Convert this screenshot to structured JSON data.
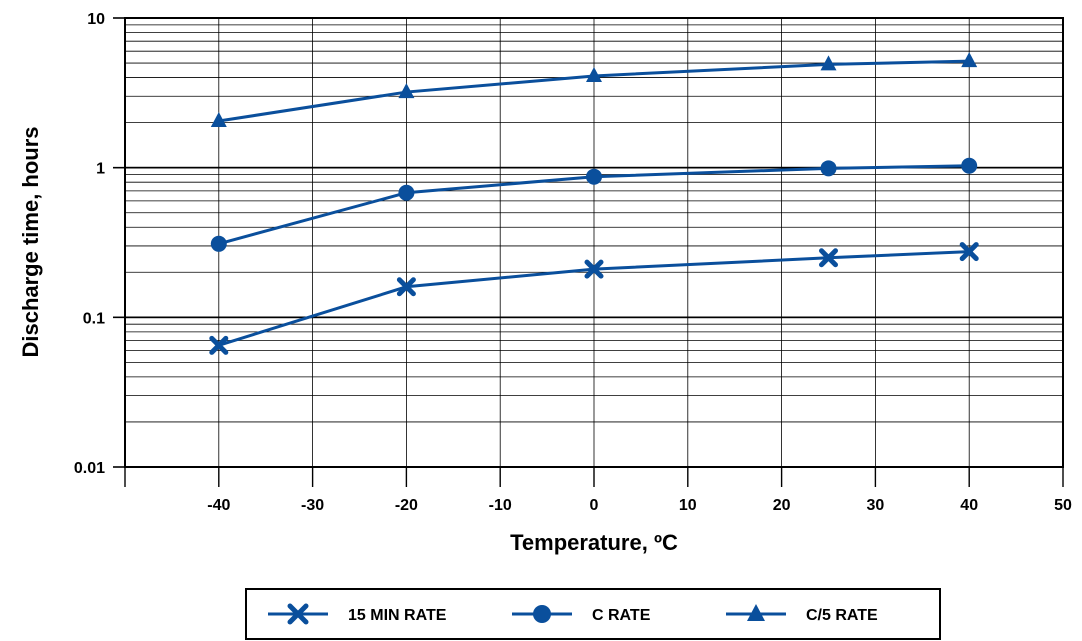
{
  "chart_data": {
    "type": "line",
    "xlabel": "Temperature, ºC",
    "ylabel": "Discharge time, hours",
    "xlim": [
      -50,
      50
    ],
    "ylim": [
      0.01,
      10
    ],
    "y_scale": "log",
    "grid": true,
    "x_ticks": [
      -40,
      -30,
      -20,
      -10,
      0,
      10,
      20,
      30,
      40,
      50
    ],
    "x_tick_labels": [
      "-40",
      "-30",
      "-20",
      "-10",
      "0",
      "10",
      "20",
      "30",
      "40",
      "50"
    ],
    "y_ticks": [
      0.01,
      0.1,
      1,
      10
    ],
    "y_tick_labels": [
      "0.01",
      "0.1",
      "1",
      "10"
    ],
    "legend_position": "bottom",
    "series_color": "#0a4f9c",
    "x": [
      -40,
      -20,
      0,
      25,
      40
    ],
    "series": [
      {
        "name": "15 MIN RATE",
        "marker": "x",
        "values": [
          0.065,
          0.16,
          0.21,
          0.25,
          0.275
        ]
      },
      {
        "name": "C RATE",
        "marker": "circle",
        "values": [
          0.31,
          0.68,
          0.87,
          0.99,
          1.03
        ]
      },
      {
        "name": "C/5 RATE",
        "marker": "triangle",
        "values": [
          2.05,
          3.2,
          4.1,
          4.9,
          5.15
        ]
      }
    ]
  }
}
